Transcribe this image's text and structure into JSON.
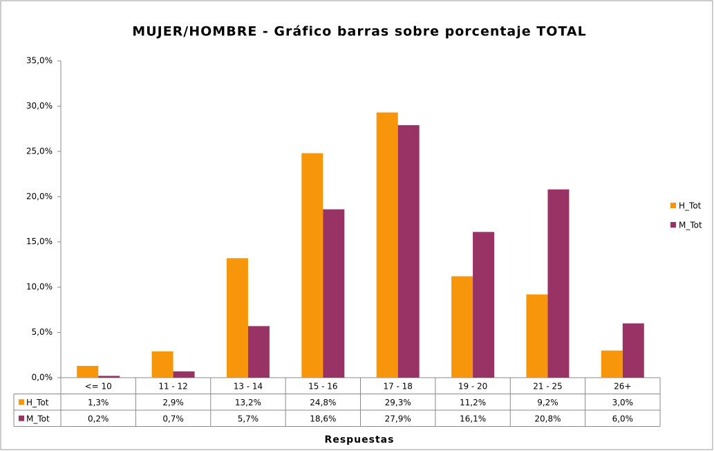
{
  "chart_data": {
    "type": "bar",
    "title": "MUJER/HOMBRE - Gráfico barras sobre porcentaje TOTAL",
    "xlabel": "Respuestas",
    "categories": [
      "<= 10",
      "11 - 12",
      "13 - 14",
      "15 - 16",
      "17 - 18",
      "19 - 20",
      "21 - 25",
      "26+"
    ],
    "series": [
      {
        "name": "H_Tot",
        "color": "#f7960a",
        "values": [
          1.3,
          2.9,
          13.2,
          24.8,
          29.3,
          11.2,
          9.2,
          3.0
        ],
        "value_labels": [
          "1,3%",
          "2,9%",
          "13,2%",
          "24,8%",
          "29,3%",
          "11,2%",
          "9,2%",
          "3,0%"
        ]
      },
      {
        "name": "M_Tot",
        "color": "#993366",
        "values": [
          0.2,
          0.7,
          5.7,
          18.6,
          27.9,
          16.1,
          20.8,
          6.0
        ],
        "value_labels": [
          "0,2%",
          "0,7%",
          "5,7%",
          "18,6%",
          "27,9%",
          "16,1%",
          "20,8%",
          "6,0%"
        ]
      }
    ],
    "ylim": [
      0,
      35
    ],
    "yticks": [
      {
        "value": 0,
        "label": "0,0%"
      },
      {
        "value": 5,
        "label": "5,0%"
      },
      {
        "value": 10,
        "label": "10,0%"
      },
      {
        "value": 15,
        "label": "15,0%"
      },
      {
        "value": 20,
        "label": "20,0%"
      },
      {
        "value": 25,
        "label": "25,0%"
      },
      {
        "value": 30,
        "label": "30,0%"
      },
      {
        "value": 35,
        "label": "35,0%"
      }
    ],
    "grid": false,
    "legend": "right"
  }
}
